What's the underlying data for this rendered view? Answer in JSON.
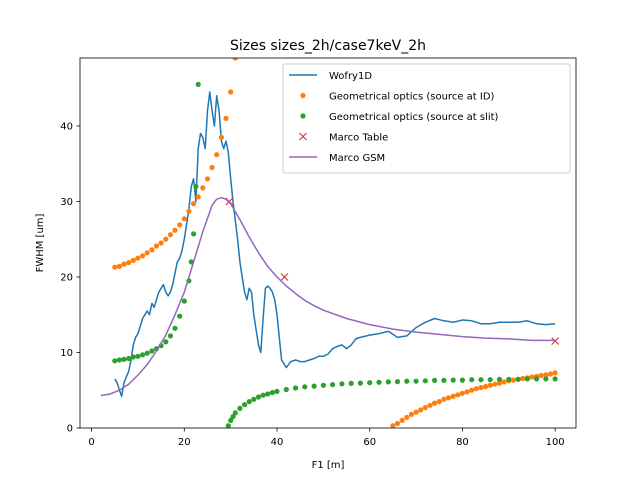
{
  "chart_data": {
    "type": "line",
    "title": "Sizes sizes_2h/case7keV_2h",
    "xlabel": "F1 [m]",
    "ylabel": "FWHM [um]",
    "xlim": [
      -2.5,
      104.5
    ],
    "ylim": [
      0,
      49
    ],
    "xticks": [
      0,
      20,
      40,
      60,
      80,
      100
    ],
    "yticks": [
      0,
      10,
      20,
      30,
      40
    ],
    "grid": false,
    "legend_position": "upper right",
    "series": [
      {
        "name": "Wofry1D",
        "style": "line",
        "color": "#1f77b4",
        "x": [
          5,
          5.5,
          6,
          6.5,
          7,
          7.5,
          8,
          8.5,
          9,
          9.5,
          10,
          10.5,
          11,
          11.5,
          12,
          12.5,
          13,
          13.5,
          14,
          14.5,
          15,
          15.5,
          16,
          16.5,
          17,
          17.5,
          18,
          18.5,
          19,
          19.5,
          20,
          20.5,
          21,
          21.5,
          22,
          22.5,
          23,
          23.5,
          24,
          24.5,
          25,
          25.5,
          26,
          26.5,
          27,
          27.5,
          28,
          28.5,
          29,
          29.5,
          30,
          30.5,
          31,
          31.5,
          32,
          32.5,
          33,
          33.5,
          34,
          34.5,
          35,
          35.5,
          36,
          36.5,
          37,
          37.5,
          38,
          38.5,
          39,
          39.5,
          40,
          40.5,
          41,
          41.5,
          42,
          43,
          44,
          45,
          46,
          47,
          48,
          49,
          50,
          51,
          52,
          53,
          54,
          55,
          56,
          57,
          58,
          60,
          62,
          64,
          66,
          68,
          70,
          72,
          74,
          76,
          78,
          80,
          82,
          84,
          86,
          88,
          90,
          92,
          94,
          96,
          98,
          100
        ],
        "y": [
          6.5,
          6.0,
          5.0,
          4.2,
          6.0,
          6.8,
          7.5,
          9.0,
          11.0,
          12.0,
          12.5,
          13.5,
          14.5,
          15.0,
          15.5,
          15.0,
          16.5,
          16.0,
          17.0,
          18.0,
          18.5,
          19.0,
          18.0,
          17.5,
          18.0,
          19.0,
          20.5,
          22.0,
          22.5,
          23.5,
          25.0,
          27.0,
          29.0,
          32.0,
          33.0,
          30.0,
          37.0,
          39.0,
          38.5,
          37.0,
          42.0,
          44.5,
          42.0,
          40.0,
          44.0,
          42.0,
          38.0,
          37.0,
          38.0,
          36.5,
          33.0,
          30.0,
          27.5,
          25.0,
          22.0,
          20.0,
          18.0,
          17.0,
          18.5,
          18.0,
          15.0,
          13.0,
          11.0,
          10.0,
          14.5,
          18.5,
          18.8,
          18.5,
          18.0,
          17.0,
          15.0,
          12.0,
          9.0,
          8.5,
          8.0,
          8.8,
          9.0,
          8.8,
          8.8,
          9.0,
          9.2,
          9.5,
          9.5,
          9.8,
          10.5,
          10.8,
          11.0,
          10.5,
          11.0,
          11.8,
          12.0,
          12.3,
          12.5,
          12.8,
          12.0,
          12.2,
          13.3,
          14.0,
          14.5,
          14.2,
          14.0,
          14.3,
          14.2,
          13.8,
          13.8,
          14.0,
          14.0,
          14.0,
          14.2,
          13.8,
          13.7,
          13.8
        ]
      },
      {
        "name": "Geometrical optics (source at ID)",
        "style": "markers",
        "color": "#ff7f0e",
        "x": [
          5,
          6,
          7,
          8,
          9,
          10,
          11,
          12,
          13,
          14,
          15,
          16,
          17,
          18,
          19,
          20,
          21,
          22,
          23,
          24,
          25,
          26,
          27,
          28,
          29,
          30,
          31,
          65,
          66,
          67,
          68,
          69,
          70,
          71,
          72,
          73,
          74,
          75,
          76,
          77,
          78,
          79,
          80,
          81,
          82,
          83,
          84,
          85,
          86,
          87,
          88,
          89,
          90,
          91,
          92,
          93,
          94,
          95,
          96,
          97,
          98,
          99,
          100
        ],
        "y": [
          21.3,
          21.4,
          21.7,
          21.9,
          22.2,
          22.5,
          22.8,
          23.2,
          23.6,
          24.1,
          24.5,
          25.0,
          25.6,
          26.2,
          26.9,
          27.7,
          28.7,
          29.7,
          30.6,
          31.8,
          33.0,
          34.5,
          36.2,
          38.5,
          41.0,
          44.5,
          49.0,
          0.3,
          0.6,
          1.0,
          1.4,
          1.8,
          2.1,
          2.4,
          2.7,
          3.0,
          3.3,
          3.5,
          3.8,
          4.0,
          4.2,
          4.4,
          4.6,
          4.8,
          5.0,
          5.2,
          5.35,
          5.5,
          5.65,
          5.8,
          5.95,
          6.1,
          6.25,
          6.35,
          6.45,
          6.55,
          6.65,
          6.75,
          6.85,
          6.95,
          7.05,
          7.15,
          7.3
        ]
      },
      {
        "name": "Geometrical optics (source at slit)",
        "style": "markers",
        "color": "#2ca02c",
        "x": [
          5,
          6,
          7,
          8,
          9,
          10,
          11,
          12,
          13,
          14,
          15,
          16,
          17,
          18,
          19,
          20,
          21,
          21.5,
          22,
          22.5,
          23,
          29.5,
          30,
          30.5,
          31,
          32,
          33,
          34,
          35,
          36,
          37,
          38,
          39,
          40,
          42,
          44,
          46,
          48,
          50,
          52,
          54,
          56,
          58,
          60,
          62,
          64,
          66,
          68,
          70,
          72,
          74,
          76,
          78,
          80,
          82,
          84,
          86,
          88,
          90,
          92,
          94,
          96,
          98,
          100
        ],
        "y": [
          8.9,
          9.0,
          9.1,
          9.2,
          9.4,
          9.5,
          9.7,
          9.9,
          10.2,
          10.5,
          10.9,
          11.4,
          12.2,
          13.2,
          14.8,
          16.8,
          19.5,
          22.0,
          25.7,
          32.0,
          45.5,
          0.3,
          1.0,
          1.5,
          2.0,
          2.6,
          3.1,
          3.5,
          3.8,
          4.1,
          4.35,
          4.5,
          4.7,
          4.85,
          5.1,
          5.3,
          5.45,
          5.55,
          5.65,
          5.75,
          5.85,
          5.9,
          5.95,
          6.0,
          6.05,
          6.1,
          6.15,
          6.2,
          6.2,
          6.25,
          6.3,
          6.3,
          6.35,
          6.35,
          6.4,
          6.4,
          6.4,
          6.45,
          6.45,
          6.45,
          6.5,
          6.5,
          6.5,
          6.5
        ]
      },
      {
        "name": "Marco Table",
        "style": "x-markers",
        "color": "#d62728",
        "x": [
          29.7,
          41.6,
          100
        ],
        "y": [
          30.0,
          20.0,
          11.5
        ]
      },
      {
        "name": "Marco GSM",
        "style": "line",
        "color": "#9467bd",
        "x": [
          2,
          4,
          6,
          8,
          10,
          12,
          14,
          16,
          18,
          20,
          22,
          24,
          26,
          27,
          28,
          29,
          30,
          32,
          34,
          36,
          38,
          40,
          42,
          44,
          46,
          48,
          50,
          55,
          60,
          65,
          70,
          75,
          80,
          85,
          90,
          95,
          100
        ],
        "y": [
          4.3,
          4.5,
          5.0,
          5.8,
          7.0,
          8.4,
          10.2,
          12.3,
          15.0,
          18.0,
          22.0,
          26.0,
          29.5,
          30.3,
          30.5,
          30.3,
          29.7,
          27.6,
          25.3,
          23.2,
          21.4,
          20.0,
          18.8,
          17.8,
          16.9,
          16.2,
          15.6,
          14.5,
          13.7,
          13.1,
          12.7,
          12.4,
          12.1,
          11.9,
          11.8,
          11.6,
          11.6
        ]
      }
    ]
  }
}
